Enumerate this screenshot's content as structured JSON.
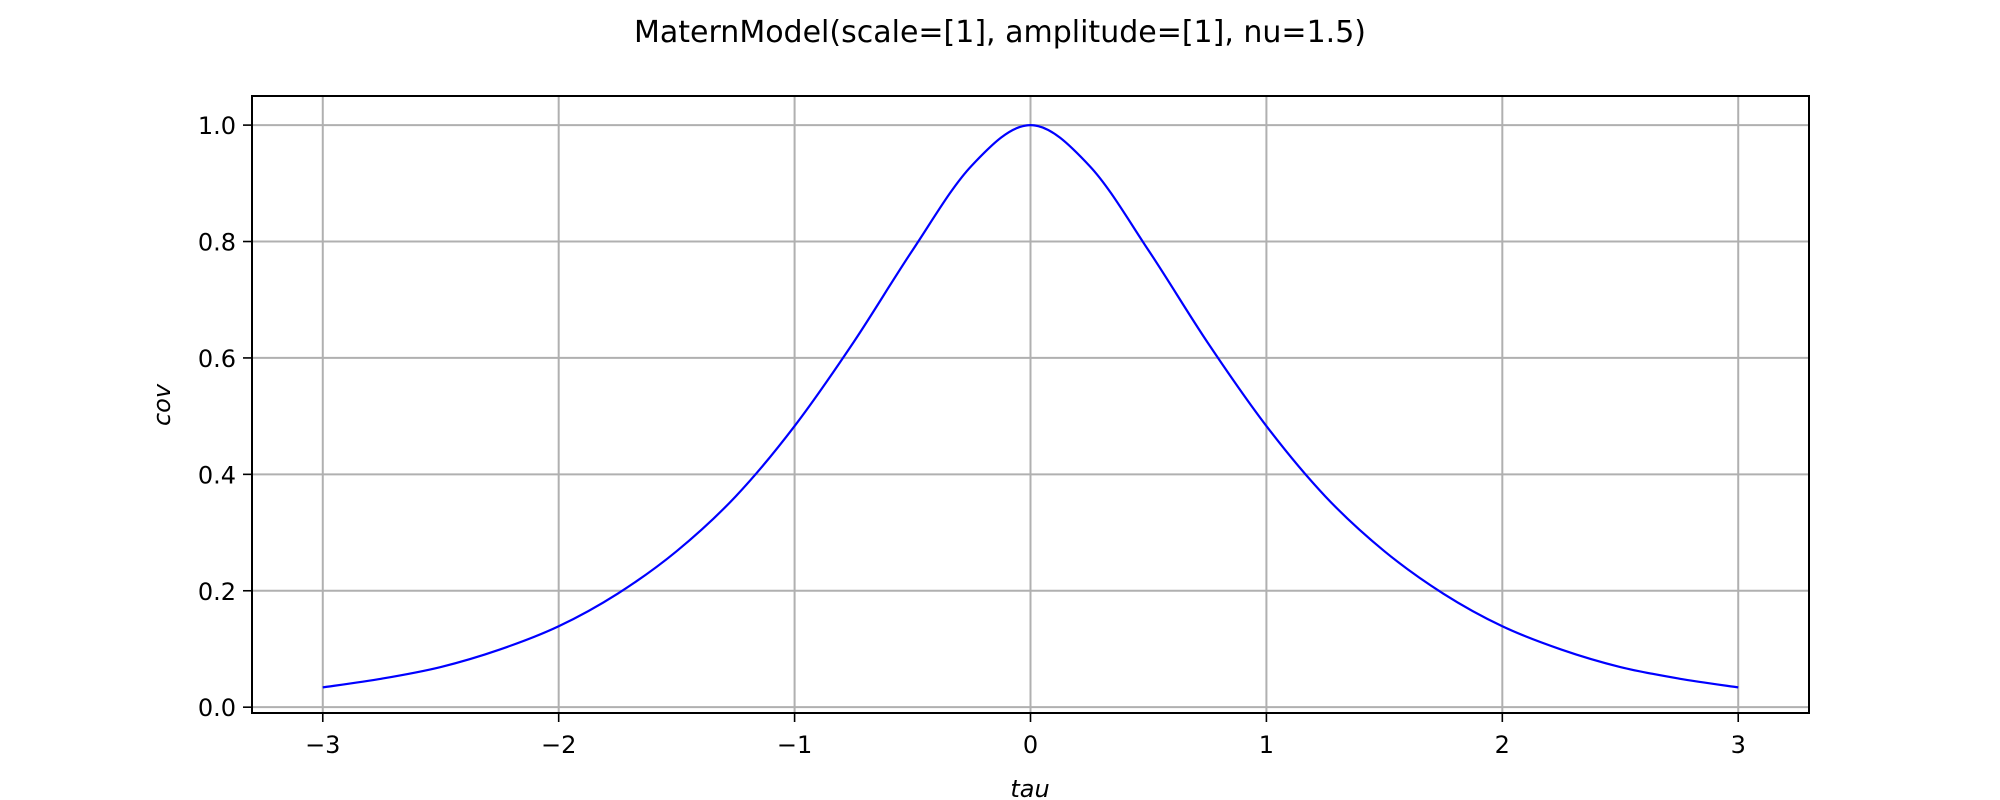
{
  "chart_data": {
    "type": "line",
    "title": "MaternModel(scale=[1], amplitude=[1], nu=1.5)",
    "xlabel": "tau",
    "ylabel": "cov",
    "xlim": [
      -3.3,
      3.3
    ],
    "ylim": [
      -0.01,
      1.05
    ],
    "xticks": [
      -3,
      -2,
      -1,
      0,
      1,
      2,
      3
    ],
    "xtick_labels": [
      "−3",
      "−2",
      "−1",
      "0",
      "1",
      "2",
      "3"
    ],
    "yticks": [
      0.0,
      0.2,
      0.4,
      0.6,
      0.8,
      1.0
    ],
    "ytick_labels": [
      "0.0",
      "0.2",
      "0.4",
      "0.6",
      "0.8",
      "1.0"
    ],
    "grid": true,
    "series": [
      {
        "color": "#0000ff",
        "x": [
          -3.0,
          -2.75,
          -2.5,
          -2.25,
          -2.0,
          -1.75,
          -1.5,
          -1.25,
          -1.0,
          -0.75,
          -0.5,
          -0.25,
          0.0,
          0.25,
          0.5,
          0.75,
          1.0,
          1.25,
          1.5,
          1.75,
          2.0,
          2.25,
          2.5,
          2.75,
          3.0
        ],
        "y": [
          0.034,
          0.049,
          0.069,
          0.099,
          0.139,
          0.195,
          0.268,
          0.362,
          0.483,
          0.627,
          0.785,
          0.93,
          1.0,
          0.93,
          0.785,
          0.627,
          0.483,
          0.362,
          0.268,
          0.195,
          0.139,
          0.099,
          0.069,
          0.049,
          0.034
        ]
      }
    ]
  }
}
